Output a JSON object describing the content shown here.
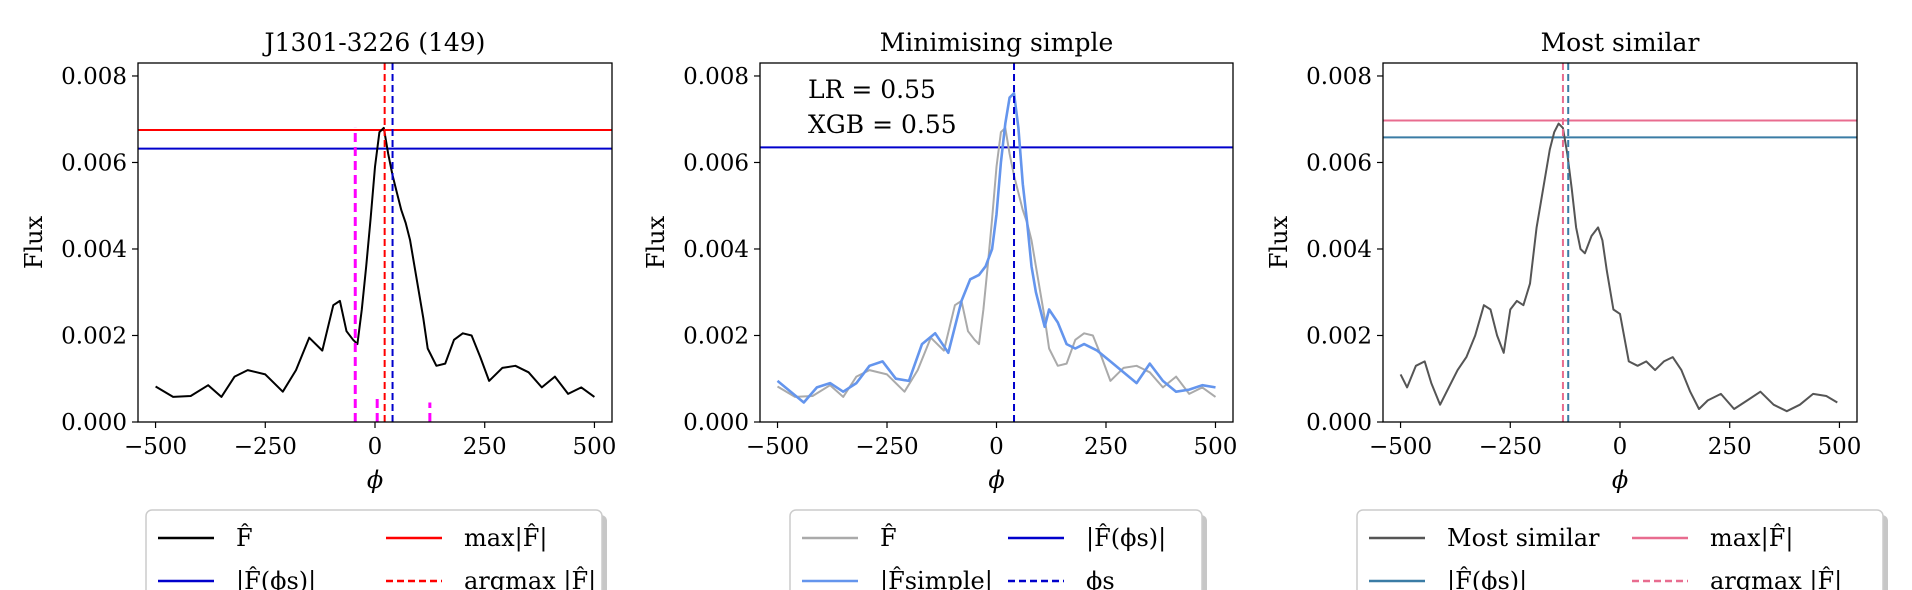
{
  "chart_data": [
    {
      "type": "line",
      "title": "J1301-3226 (149)",
      "xlabel": "ϕ",
      "ylabel": "Flux",
      "xlim": [
        -540,
        540
      ],
      "ylim": [
        0,
        0.0083
      ],
      "xticks": [
        -500,
        -250,
        0,
        250,
        500
      ],
      "xtick_labels": [
        "−500",
        "−250",
        "0",
        "250",
        "500"
      ],
      "yticks": [
        0,
        0.002,
        0.004,
        0.006,
        0.008
      ],
      "ytick_labels": [
        "0.000",
        "0.002",
        "0.004",
        "0.006",
        "0.008"
      ],
      "grid": false,
      "legend_position": "below",
      "series": [
        {
          "name": "F̂",
          "color": "#000000",
          "style": "solid",
          "x": [
            -500,
            -460,
            -420,
            -380,
            -350,
            -320,
            -290,
            -250,
            -210,
            -180,
            -150,
            -120,
            -95,
            -80,
            -65,
            -50,
            -40,
            -30,
            -20,
            -10,
            0,
            10,
            20,
            30,
            40,
            50,
            60,
            70,
            80,
            90,
            100,
            110,
            120,
            140,
            160,
            180,
            200,
            220,
            240,
            260,
            290,
            320,
            350,
            380,
            410,
            440,
            470,
            500
          ],
          "y": [
            0.00082,
            0.00058,
            0.0006,
            0.00085,
            0.00058,
            0.00105,
            0.0012,
            0.0011,
            0.0007,
            0.0012,
            0.00195,
            0.00165,
            0.0027,
            0.0028,
            0.0021,
            0.0019,
            0.0018,
            0.0026,
            0.0036,
            0.0047,
            0.0059,
            0.0067,
            0.0068,
            0.0062,
            0.0057,
            0.0053,
            0.0049,
            0.0046,
            0.0042,
            0.0036,
            0.003,
            0.0024,
            0.0017,
            0.0013,
            0.00135,
            0.0019,
            0.00205,
            0.002,
            0.0015,
            0.00095,
            0.00125,
            0.0013,
            0.00115,
            0.0008,
            0.00105,
            0.00065,
            0.0008,
            0.00058
          ]
        }
      ],
      "hlines": [
        {
          "name": "max|F̂|",
          "y": 0.00675,
          "color": "#ff0000",
          "style": "solid"
        },
        {
          "name": "|F̂(ϕs)|",
          "y": 0.00632,
          "color": "#0000cc",
          "style": "solid"
        }
      ],
      "vlines": [
        {
          "name": "argmax |F̂|",
          "x": 22,
          "color": "#ff0000",
          "style": "dashed"
        },
        {
          "name": "ϕs",
          "x": 40,
          "color": "#0000cc",
          "style": "dashed"
        }
      ],
      "marks": [
        {
          "x": -45,
          "height": 0.0068,
          "color": "#ff00ff",
          "style": "dashed"
        },
        {
          "x": 5,
          "height": 0.0006,
          "color": "#ff00ff",
          "style": "dashed"
        },
        {
          "x": 125,
          "height": 0.00045,
          "color": "#ff00ff",
          "style": "dashed"
        }
      ],
      "annotations": [],
      "legend": [
        {
          "label": "F̂",
          "color": "#000000",
          "style": "solid"
        },
        {
          "label": "max|F̂|",
          "color": "#ff0000",
          "style": "solid"
        },
        {
          "label": "|F̂(ϕs)|",
          "color": "#0000cc",
          "style": "solid"
        },
        {
          "label": "argmax |F̂|",
          "color": "#ff0000",
          "style": "dashed"
        }
      ]
    },
    {
      "type": "line",
      "title": "Minimising simple",
      "xlabel": "ϕ",
      "ylabel": "Flux",
      "xlim": [
        -540,
        540
      ],
      "ylim": [
        0,
        0.0083
      ],
      "xticks": [
        -500,
        -250,
        0,
        250,
        500
      ],
      "xtick_labels": [
        "−500",
        "−250",
        "0",
        "250",
        "500"
      ],
      "yticks": [
        0,
        0.002,
        0.004,
        0.006,
        0.008
      ],
      "ytick_labels": [
        "0.000",
        "0.002",
        "0.004",
        "0.006",
        "0.008"
      ],
      "grid": false,
      "legend_position": "below",
      "series": [
        {
          "name": "F̂",
          "color": "#aaaaaa",
          "style": "solid",
          "x": [
            -500,
            -460,
            -420,
            -380,
            -350,
            -320,
            -290,
            -250,
            -210,
            -180,
            -150,
            -120,
            -95,
            -80,
            -65,
            -50,
            -40,
            -30,
            -20,
            -10,
            0,
            10,
            20,
            30,
            40,
            50,
            60,
            70,
            80,
            90,
            100,
            110,
            120,
            140,
            160,
            180,
            200,
            220,
            240,
            260,
            290,
            320,
            350,
            380,
            410,
            440,
            470,
            500
          ],
          "y": [
            0.00082,
            0.00058,
            0.0006,
            0.00085,
            0.00058,
            0.00105,
            0.0012,
            0.0011,
            0.0007,
            0.0012,
            0.00195,
            0.00165,
            0.0027,
            0.0028,
            0.0021,
            0.0019,
            0.0018,
            0.0026,
            0.0036,
            0.0047,
            0.0059,
            0.0067,
            0.0068,
            0.0062,
            0.0057,
            0.0053,
            0.0049,
            0.0046,
            0.0042,
            0.0036,
            0.003,
            0.0024,
            0.0017,
            0.0013,
            0.00135,
            0.0019,
            0.00205,
            0.002,
            0.0015,
            0.00095,
            0.00125,
            0.0013,
            0.00115,
            0.0008,
            0.00105,
            0.00065,
            0.0008,
            0.00058
          ]
        },
        {
          "name": "|F̂simple|",
          "color": "#6495ed",
          "style": "solid",
          "x": [
            -500,
            -470,
            -440,
            -410,
            -380,
            -350,
            -320,
            -290,
            -260,
            -230,
            -200,
            -170,
            -140,
            -110,
            -80,
            -60,
            -40,
            -25,
            -10,
            0,
            10,
            20,
            30,
            40,
            50,
            60,
            70,
            80,
            90,
            100,
            110,
            120,
            140,
            160,
            180,
            200,
            230,
            260,
            290,
            320,
            350,
            380,
            410,
            440,
            470,
            500
          ],
          "y": [
            0.00095,
            0.0007,
            0.00045,
            0.0008,
            0.0009,
            0.0007,
            0.0009,
            0.0013,
            0.0014,
            0.001,
            0.00095,
            0.0018,
            0.00205,
            0.0016,
            0.0028,
            0.0033,
            0.0034,
            0.0036,
            0.004,
            0.0048,
            0.006,
            0.0069,
            0.0075,
            0.0076,
            0.0068,
            0.0055,
            0.0046,
            0.0036,
            0.003,
            0.0026,
            0.0022,
            0.0026,
            0.0023,
            0.0018,
            0.0017,
            0.0018,
            0.00165,
            0.0014,
            0.00115,
            0.0009,
            0.00135,
            0.00095,
            0.0007,
            0.00075,
            0.00085,
            0.0008
          ]
        }
      ],
      "hlines": [
        {
          "name": "|F̂(ϕs)|",
          "y": 0.00635,
          "color": "#0000cc",
          "style": "solid"
        }
      ],
      "vlines": [
        {
          "name": "ϕs",
          "x": 40,
          "color": "#0000cc",
          "style": "dashed"
        }
      ],
      "marks": [],
      "annotations": [
        "LR = 0.55",
        "XGB = 0.55"
      ],
      "legend": [
        {
          "label": "F̂",
          "color": "#aaaaaa",
          "style": "solid"
        },
        {
          "label": "|F̂(ϕs)|",
          "color": "#0000cc",
          "style": "solid"
        },
        {
          "label": "|F̂simple|",
          "color": "#6495ed",
          "style": "solid"
        },
        {
          "label": "ϕs",
          "color": "#0000cc",
          "style": "dashed"
        }
      ]
    },
    {
      "type": "line",
      "title": "Most similar",
      "xlabel": "ϕ",
      "ylabel": "Flux",
      "xlim": [
        -540,
        540
      ],
      "ylim": [
        0,
        0.0083
      ],
      "xticks": [
        -500,
        -250,
        0,
        250,
        500
      ],
      "xtick_labels": [
        "−500",
        "−250",
        "0",
        "250",
        "500"
      ],
      "yticks": [
        0,
        0.002,
        0.004,
        0.006,
        0.008
      ],
      "ytick_labels": [
        "0.000",
        "0.002",
        "0.004",
        "0.006",
        "0.008"
      ],
      "grid": false,
      "legend_position": "below",
      "series": [
        {
          "name": "Most similar",
          "color": "#555555",
          "style": "solid",
          "x": [
            -500,
            -485,
            -465,
            -445,
            -430,
            -410,
            -390,
            -370,
            -350,
            -330,
            -310,
            -295,
            -280,
            -265,
            -250,
            -235,
            -220,
            -205,
            -190,
            -175,
            -160,
            -150,
            -140,
            -130,
            -120,
            -110,
            -100,
            -90,
            -80,
            -65,
            -50,
            -40,
            -30,
            -15,
            0,
            20,
            40,
            60,
            80,
            100,
            120,
            140,
            160,
            180,
            200,
            230,
            260,
            290,
            320,
            350,
            380,
            410,
            440,
            470,
            495
          ],
          "y": [
            0.0011,
            0.0008,
            0.0013,
            0.0014,
            0.0009,
            0.0004,
            0.0008,
            0.0012,
            0.0015,
            0.002,
            0.0027,
            0.0026,
            0.002,
            0.0016,
            0.0026,
            0.0028,
            0.0027,
            0.0032,
            0.0045,
            0.0054,
            0.0063,
            0.0067,
            0.0069,
            0.0068,
            0.0062,
            0.0054,
            0.0045,
            0.004,
            0.0039,
            0.0043,
            0.0045,
            0.0042,
            0.0035,
            0.0026,
            0.0025,
            0.0014,
            0.0013,
            0.0014,
            0.0012,
            0.0014,
            0.0015,
            0.0012,
            0.0007,
            0.0003,
            0.0005,
            0.00065,
            0.0003,
            0.0005,
            0.0007,
            0.0004,
            0.00025,
            0.0004,
            0.00065,
            0.0006,
            0.00045
          ]
        }
      ],
      "hlines": [
        {
          "name": "max|F̂|",
          "y": 0.00697,
          "color": "#e86c8f",
          "style": "solid"
        },
        {
          "name": "|F̂(ϕs)|",
          "y": 0.00658,
          "color": "#3a7ca5",
          "style": "solid"
        }
      ],
      "vlines": [
        {
          "name": "argmax |F̂|",
          "x": -130,
          "color": "#e86c8f",
          "style": "dashed"
        },
        {
          "name": "ϕs",
          "x": -118,
          "color": "#3a7ca5",
          "style": "dashed"
        }
      ],
      "marks": [],
      "annotations": [],
      "legend": [
        {
          "label": "Most similar",
          "color": "#555555",
          "style": "solid"
        },
        {
          "label": "max|F̂|",
          "color": "#e86c8f",
          "style": "solid"
        },
        {
          "label": "|F̂(ϕs)|",
          "color": "#3a7ca5",
          "style": "solid"
        },
        {
          "label": "argmax |F̂|",
          "color": "#e86c8f",
          "style": "dashed"
        }
      ]
    }
  ]
}
